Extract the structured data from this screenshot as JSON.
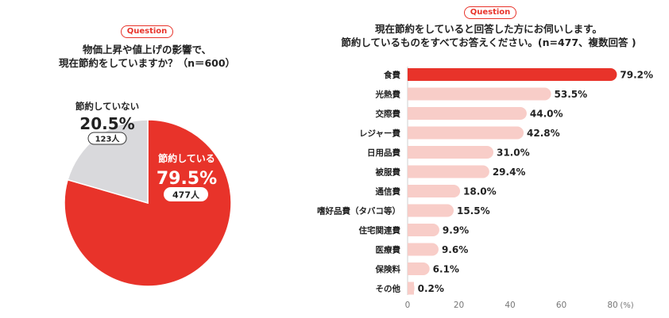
{
  "left": {
    "badge": "Question",
    "title_line1": "物価上昇や値上げの影響で、",
    "title_line2": "現在節約をしていますか？（n＝600）"
  },
  "right": {
    "badge": "Question",
    "title_line1": "現在節約をしていると回答した方にお伺いします。",
    "title_line2": "節約しているものをすべてお答えください。(n=477、複数回答 )"
  },
  "colors": {
    "accent": "#e8332a",
    "pie_gray": "#d9d9dc",
    "bar_light": "#f8cdc8",
    "text": "#222222"
  },
  "chart_data": [
    {
      "type": "pie",
      "title": "物価上昇や値上げの影響で、現在節約をしていますか？（n＝600）",
      "slices": [
        {
          "label": "節約している",
          "percent_label": "79.5%",
          "value": 79.5,
          "count_label": "477人",
          "color": "#e8332a"
        },
        {
          "label": "節約していない",
          "percent_label": "20.5%",
          "value": 20.5,
          "count_label": "123人",
          "color": "#d9d9dc"
        }
      ]
    },
    {
      "type": "bar",
      "orientation": "horizontal",
      "title": "現在節約をしていると回答した方にお伺いします。節約しているものをすべてお答えください。(n=477、複数回答 )",
      "categories": [
        "食費",
        "光熱費",
        "交際費",
        "レジャー費",
        "日用品費",
        "被服費",
        "通信費",
        "嗜好品費（タバコ等）",
        "住宅関連費",
        "医療費",
        "保険料",
        "その他"
      ],
      "values": [
        79.2,
        53.5,
        44.0,
        42.8,
        31.0,
        29.4,
        18.0,
        15.5,
        9.9,
        9.6,
        6.1,
        0.2
      ],
      "value_labels": [
        "79.2%",
        "53.5%",
        "44.0%",
        "42.8%",
        "31.0%",
        "29.4%",
        "18.0%",
        "15.5%",
        "9.9%",
        "9.6%",
        "6.1%",
        "0.2%"
      ],
      "xlim": [
        0,
        80
      ],
      "xticks": [
        "0",
        "20",
        "40",
        "60",
        "80"
      ],
      "xunit": "(%)",
      "highlight_index": 0
    }
  ]
}
